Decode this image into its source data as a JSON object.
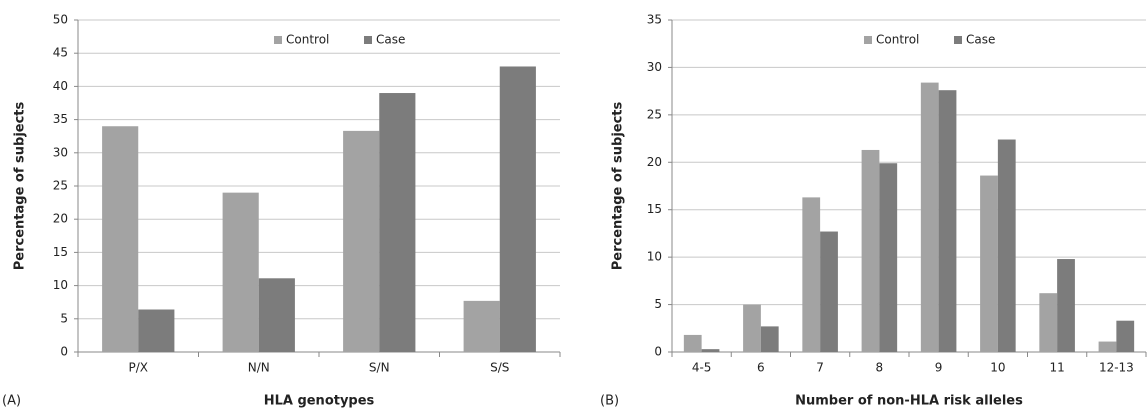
{
  "chart_data": [
    {
      "type": "bar",
      "panel_label": "(A)",
      "x_label": "HLA genotypes",
      "y_label": "Percentage of subjects",
      "categories": [
        "P/X",
        "N/N",
        "S/N",
        "S/S"
      ],
      "series": [
        {
          "name": "Control",
          "color": "#a3a3a3",
          "values": [
            34,
            24,
            33.3,
            7.7
          ]
        },
        {
          "name": "Case",
          "color": "#7c7c7c",
          "values": [
            6.4,
            11.1,
            39,
            43
          ]
        }
      ],
      "ylim": [
        0,
        50
      ],
      "yticks": [
        0,
        5,
        10,
        15,
        20,
        25,
        30,
        35,
        40,
        45,
        50
      ],
      "grid": true,
      "legend": "top"
    },
    {
      "type": "bar",
      "panel_label": "(B)",
      "x_label": "Number of non-HLA risk alleles",
      "y_label": "Percentage of subjects",
      "categories": [
        "4-5",
        "6",
        "7",
        "8",
        "9",
        "10",
        "11",
        "12-13"
      ],
      "series": [
        {
          "name": "Control",
          "color": "#a3a3a3",
          "values": [
            1.8,
            5.0,
            16.3,
            21.3,
            28.4,
            18.6,
            6.2,
            1.1
          ]
        },
        {
          "name": "Case",
          "color": "#7c7c7c",
          "values": [
            0.3,
            2.7,
            12.7,
            19.9,
            27.6,
            22.4,
            9.8,
            3.3
          ]
        }
      ],
      "ylim": [
        0,
        35
      ],
      "yticks": [
        0,
        5,
        10,
        15,
        20,
        25,
        30,
        35
      ],
      "grid": true,
      "legend": "top"
    }
  ]
}
